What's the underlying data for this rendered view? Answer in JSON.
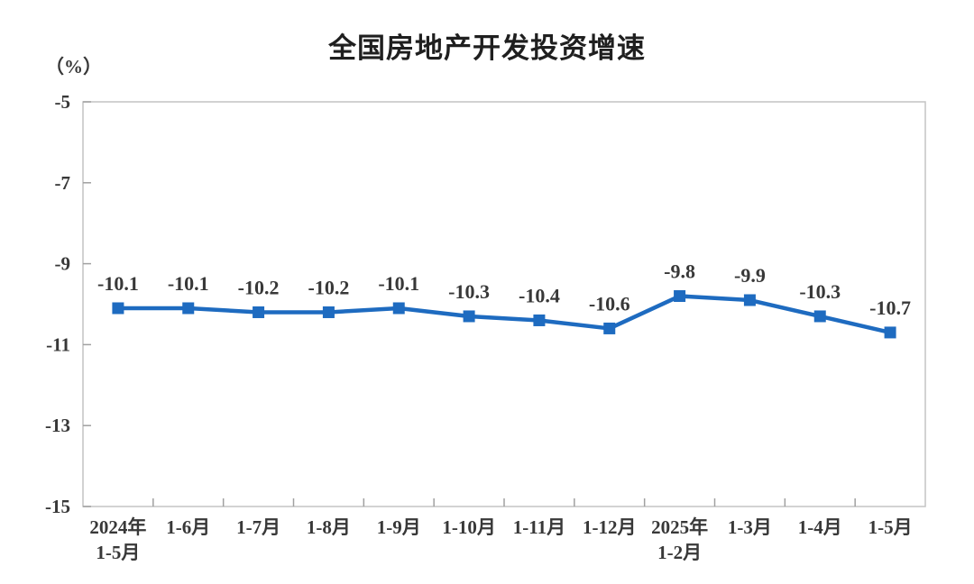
{
  "title": "全国房地产开发投资增速",
  "unit_label": "（%）",
  "chart_data": {
    "type": "line",
    "title": "全国房地产开发投资增速",
    "xlabel": "",
    "ylabel": "（%）",
    "categories": [
      [
        "2024年",
        "1-5月"
      ],
      [
        "1-6月"
      ],
      [
        "1-7月"
      ],
      [
        "1-8月"
      ],
      [
        "1-9月"
      ],
      [
        "1-10月"
      ],
      [
        "1-11月"
      ],
      [
        "1-12月"
      ],
      [
        "2025年",
        "1-2月"
      ],
      [
        "1-3月"
      ],
      [
        "1-4月"
      ],
      [
        "1-5月"
      ]
    ],
    "values": [
      -10.1,
      -10.1,
      -10.2,
      -10.2,
      -10.1,
      -10.3,
      -10.4,
      -10.6,
      -9.8,
      -9.9,
      -10.3,
      -10.7
    ],
    "data_labels": [
      "-10.1",
      "-10.1",
      "-10.2",
      "-10.2",
      "-10.1",
      "-10.3",
      "-10.4",
      "-10.6",
      "-9.8",
      "-9.9",
      "-10.3",
      "-10.7"
    ],
    "ylim": [
      -15,
      -5
    ],
    "yticks": [
      -5,
      -7,
      -9,
      -11,
      -13,
      -15
    ],
    "ytick_labels": [
      "-5",
      "-7",
      "-9",
      "-11",
      "-13",
      "-15"
    ],
    "grid": false,
    "legend": "none",
    "marker": "square",
    "line_color": "#1e6bc0",
    "axis_color": "#c4c4c4",
    "tick_color": "#a0a0a0"
  }
}
